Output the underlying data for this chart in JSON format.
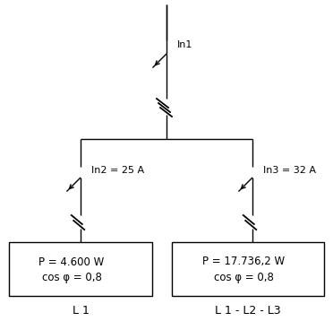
{
  "background_color": "#ffffff",
  "line_color": "#000000",
  "text_color": "#000000",
  "in1_label": "In1",
  "in2_label": "In2 = 25 A",
  "in3_label": "In3 = 32 A",
  "box1_line1": "P = 4.600 W",
  "box1_line2": "cos φ = 0,8",
  "box2_line1": "P = 17.736,2 W",
  "box2_line2": "cos φ = 0,8",
  "label1": "L 1",
  "label2": "L 1 - L2 - L3",
  "fig_width": 3.72,
  "fig_height": 3.68,
  "dpi": 100
}
